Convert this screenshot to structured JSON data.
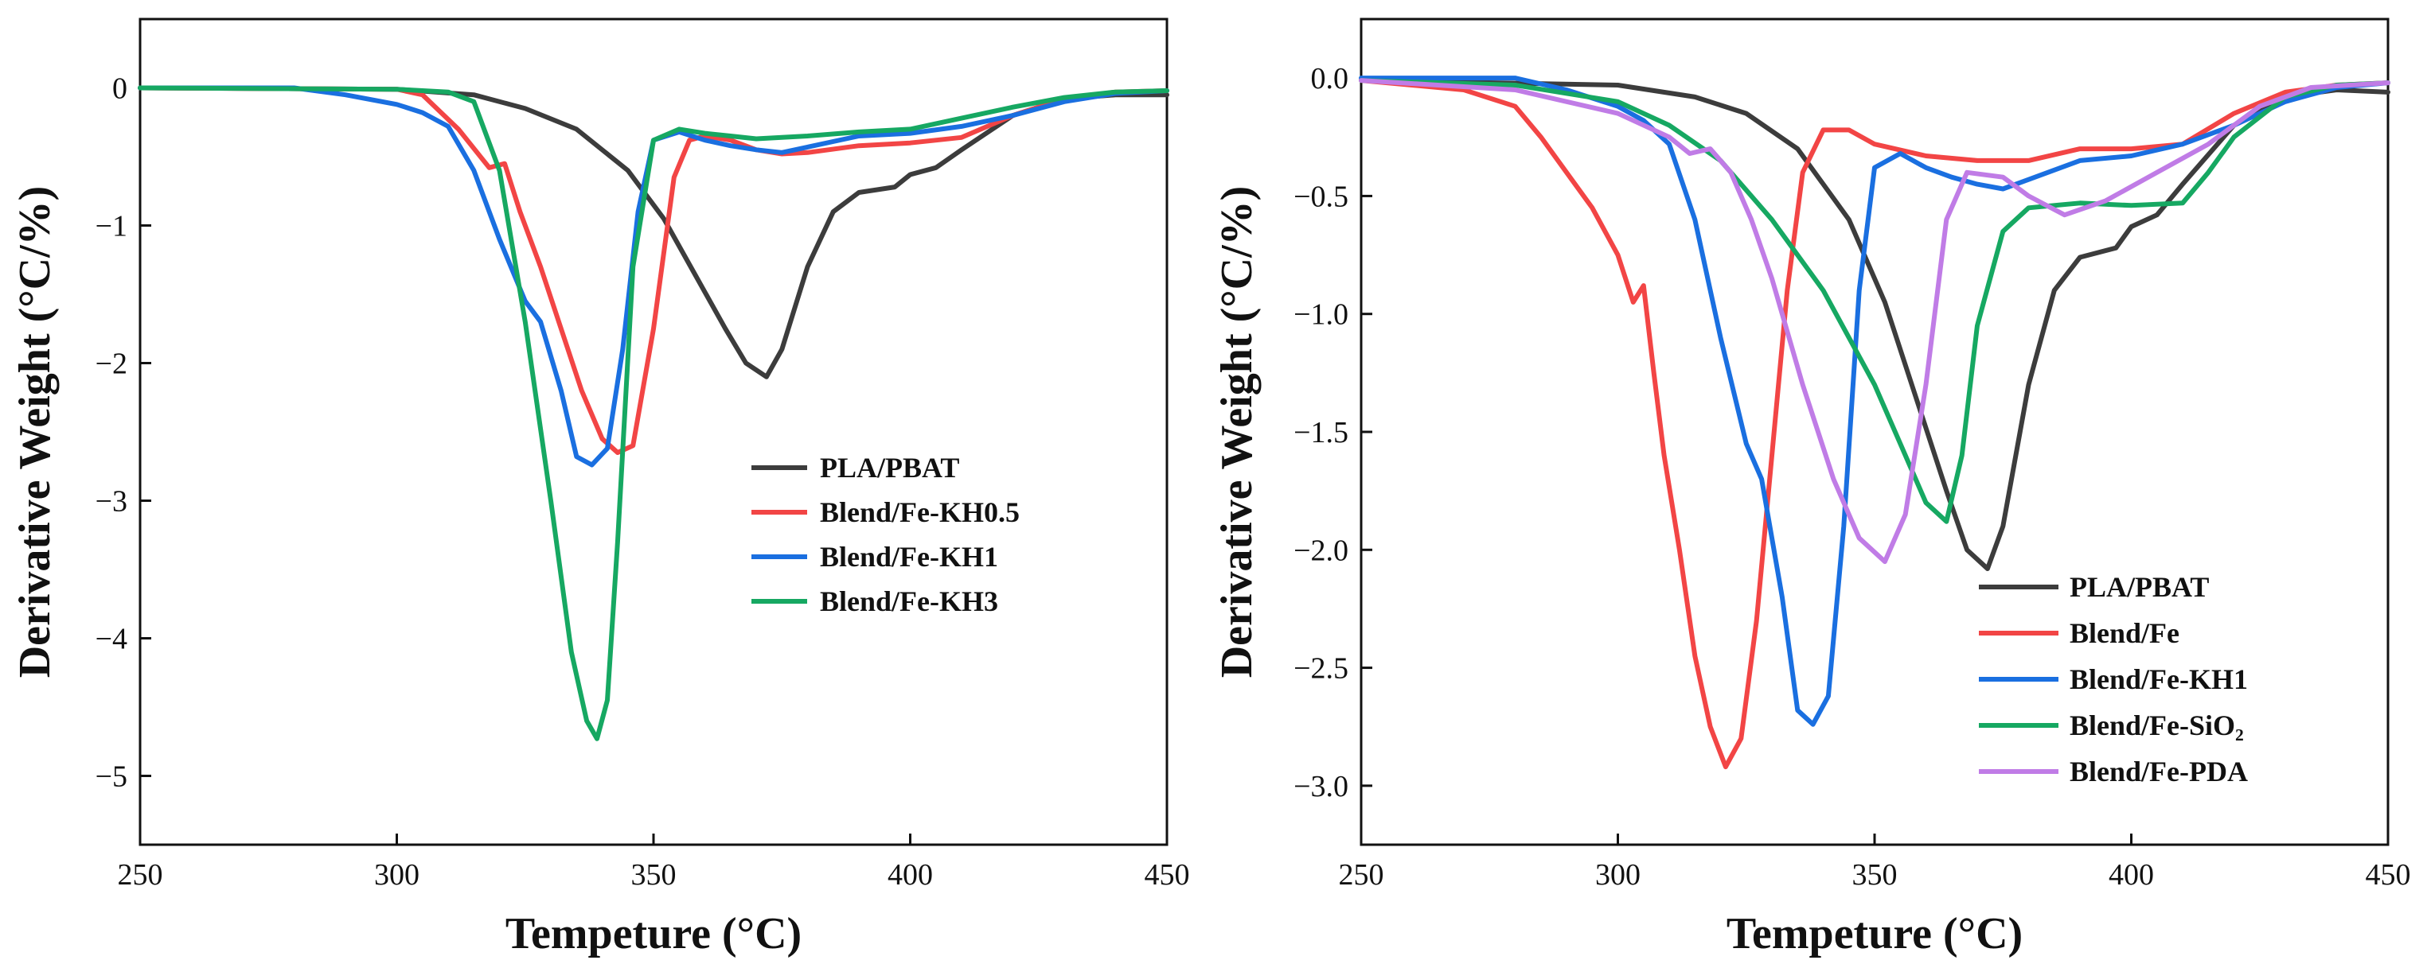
{
  "chart_data": [
    {
      "type": "line",
      "xlabel": "Tempeture (°C)",
      "ylabel": "Derivative Weight (°C/%)",
      "xlim": [
        250,
        450
      ],
      "ylim": [
        -5.5,
        0.5
      ],
      "xticks": [
        250,
        300,
        350,
        400,
        450
      ],
      "xtick_labels": [
        "250",
        "300",
        "350",
        "400",
        "450"
      ],
      "yticks": [
        0,
        -1,
        -2,
        -3,
        -4,
        -5
      ],
      "ytick_labels": [
        "0",
        "−1",
        "−2",
        "−3",
        "−4",
        "−5"
      ],
      "legend_position": "lower-right",
      "series": [
        {
          "name": "PLA/PBAT",
          "color": "#3c3c3c",
          "x": [
            250,
            300,
            315,
            325,
            335,
            345,
            352,
            358,
            364,
            368,
            372,
            375,
            380,
            385,
            390,
            397,
            400,
            405,
            410,
            420,
            430,
            440,
            450
          ],
          "y": [
            0,
            -0.01,
            -0.05,
            -0.15,
            -0.3,
            -0.6,
            -0.95,
            -1.35,
            -1.75,
            -2.0,
            -2.1,
            -1.9,
            -1.3,
            -0.9,
            -0.76,
            -0.72,
            -0.63,
            -0.58,
            -0.45,
            -0.2,
            -0.08,
            -0.05,
            -0.05
          ]
        },
        {
          "name": "Blend/Fe-KH0.5",
          "color": "#f24545",
          "x": [
            250,
            300,
            305,
            312,
            318,
            321,
            324,
            328,
            332,
            336,
            340,
            343,
            346,
            350,
            354,
            357,
            360,
            365,
            370,
            375,
            380,
            390,
            400,
            410,
            420,
            430,
            440,
            450
          ],
          "y": [
            0,
            -0.01,
            -0.05,
            -0.3,
            -0.58,
            -0.55,
            -0.9,
            -1.3,
            -1.75,
            -2.2,
            -2.55,
            -2.65,
            -2.6,
            -1.75,
            -0.65,
            -0.38,
            -0.35,
            -0.38,
            -0.45,
            -0.48,
            -0.47,
            -0.42,
            -0.4,
            -0.36,
            -0.2,
            -0.08,
            -0.03,
            -0.02
          ]
        },
        {
          "name": "Blend/Fe-KH1",
          "color": "#1a6fe0",
          "x": [
            250,
            280,
            290,
            300,
            305,
            310,
            315,
            320,
            325,
            328,
            332,
            335,
            338,
            341,
            344,
            347,
            350,
            355,
            360,
            365,
            370,
            375,
            380,
            390,
            400,
            410,
            420,
            430,
            440,
            450
          ],
          "y": [
            0,
            0,
            -0.05,
            -0.12,
            -0.18,
            -0.28,
            -0.6,
            -1.1,
            -1.55,
            -1.7,
            -2.2,
            -2.68,
            -2.74,
            -2.62,
            -1.9,
            -0.9,
            -0.38,
            -0.32,
            -0.38,
            -0.42,
            -0.45,
            -0.47,
            -0.43,
            -0.35,
            -0.33,
            -0.28,
            -0.2,
            -0.1,
            -0.04,
            -0.02
          ]
        },
        {
          "name": "Blend/Fe-KH3",
          "color": "#16a862",
          "x": [
            250,
            300,
            310,
            315,
            320,
            325,
            330,
            334,
            337,
            339,
            341,
            343,
            346,
            350,
            355,
            360,
            365,
            370,
            380,
            390,
            400,
            410,
            420,
            430,
            440,
            450
          ],
          "y": [
            0,
            -0.01,
            -0.03,
            -0.1,
            -0.6,
            -1.7,
            -3.0,
            -4.1,
            -4.6,
            -4.73,
            -4.45,
            -3.3,
            -1.3,
            -0.38,
            -0.3,
            -0.33,
            -0.35,
            -0.37,
            -0.35,
            -0.32,
            -0.3,
            -0.22,
            -0.14,
            -0.07,
            -0.03,
            -0.02
          ]
        }
      ]
    },
    {
      "type": "line",
      "xlabel": "Tempeture (°C)",
      "ylabel": "Derivative Weight (°C/%)",
      "xlim": [
        250,
        450
      ],
      "ylim": [
        -3.25,
        0.25
      ],
      "xticks": [
        250,
        300,
        350,
        400,
        450
      ],
      "xtick_labels": [
        "250",
        "300",
        "350",
        "400",
        "450"
      ],
      "yticks": [
        0,
        -0.5,
        -1.0,
        -1.5,
        -2.0,
        -2.5,
        -3.0
      ],
      "ytick_labels": [
        "0.0",
        "−0.5",
        "−1.0",
        "−1.5",
        "−2.0",
        "−2.5",
        "−3.0"
      ],
      "legend_position": "lower-right",
      "series": [
        {
          "name": "PLA/PBAT",
          "color": "#3c3c3c",
          "x": [
            250,
            300,
            315,
            325,
            335,
            345,
            352,
            358,
            364,
            368,
            372,
            375,
            380,
            385,
            390,
            397,
            400,
            405,
            410,
            420,
            430,
            440,
            450
          ],
          "y": [
            -0.01,
            -0.03,
            -0.08,
            -0.15,
            -0.3,
            -0.6,
            -0.95,
            -1.35,
            -1.75,
            -2.0,
            -2.08,
            -1.9,
            -1.3,
            -0.9,
            -0.76,
            -0.72,
            -0.63,
            -0.58,
            -0.45,
            -0.2,
            -0.08,
            -0.05,
            -0.06
          ]
        },
        {
          "name": "Blend/Fe",
          "color": "#f24545",
          "x": [
            250,
            270,
            280,
            285,
            290,
            295,
            300,
            303,
            305,
            307,
            309,
            312,
            315,
            318,
            321,
            324,
            327,
            330,
            333,
            336,
            340,
            345,
            350,
            360,
            370,
            380,
            390,
            400,
            410,
            420,
            430,
            440,
            450
          ],
          "y": [
            -0.01,
            -0.05,
            -0.12,
            -0.25,
            -0.4,
            -0.55,
            -0.75,
            -0.95,
            -0.88,
            -1.25,
            -1.6,
            -2.0,
            -2.45,
            -2.75,
            -2.92,
            -2.8,
            -2.3,
            -1.6,
            -0.9,
            -0.4,
            -0.22,
            -0.22,
            -0.28,
            -0.33,
            -0.35,
            -0.35,
            -0.3,
            -0.3,
            -0.28,
            -0.15,
            -0.06,
            -0.03,
            -0.02
          ]
        },
        {
          "name": "Blend/Fe-KH1",
          "color": "#1a6fe0",
          "x": [
            250,
            280,
            290,
            300,
            305,
            310,
            315,
            320,
            325,
            328,
            332,
            335,
            338,
            341,
            344,
            347,
            350,
            355,
            360,
            365,
            370,
            375,
            380,
            390,
            400,
            410,
            420,
            430,
            440,
            450
          ],
          "y": [
            0,
            0,
            -0.05,
            -0.12,
            -0.18,
            -0.28,
            -0.6,
            -1.1,
            -1.55,
            -1.7,
            -2.2,
            -2.68,
            -2.74,
            -2.62,
            -1.9,
            -0.9,
            -0.38,
            -0.32,
            -0.38,
            -0.42,
            -0.45,
            -0.47,
            -0.43,
            -0.35,
            -0.33,
            -0.28,
            -0.2,
            -0.1,
            -0.04,
            -0.02
          ]
        },
        {
          "name": "Blend/Fe-SiO₂",
          "color": "#16a862",
          "x": [
            250,
            280,
            300,
            310,
            320,
            330,
            340,
            350,
            355,
            360,
            364,
            367,
            370,
            375,
            380,
            390,
            400,
            410,
            415,
            420,
            430,
            440,
            450
          ],
          "y": [
            -0.01,
            -0.03,
            -0.1,
            -0.2,
            -0.35,
            -0.6,
            -0.9,
            -1.3,
            -1.55,
            -1.8,
            -1.88,
            -1.6,
            -1.05,
            -0.65,
            -0.55,
            -0.53,
            -0.54,
            -0.53,
            -0.4,
            -0.25,
            -0.08,
            -0.03,
            -0.02
          ]
        },
        {
          "name": "Blend/Fe-PDA",
          "color": "#c07ce6",
          "x": [
            250,
            280,
            300,
            310,
            314,
            318,
            322,
            326,
            330,
            336,
            342,
            347,
            352,
            356,
            360,
            364,
            368,
            375,
            380,
            387,
            395,
            405,
            415,
            425,
            435,
            450
          ],
          "y": [
            -0.01,
            -0.05,
            -0.15,
            -0.25,
            -0.32,
            -0.3,
            -0.4,
            -0.6,
            -0.85,
            -1.3,
            -1.7,
            -1.95,
            -2.05,
            -1.85,
            -1.3,
            -0.6,
            -0.4,
            -0.42,
            -0.5,
            -0.58,
            -0.52,
            -0.4,
            -0.28,
            -0.12,
            -0.04,
            -0.02
          ]
        }
      ]
    }
  ]
}
